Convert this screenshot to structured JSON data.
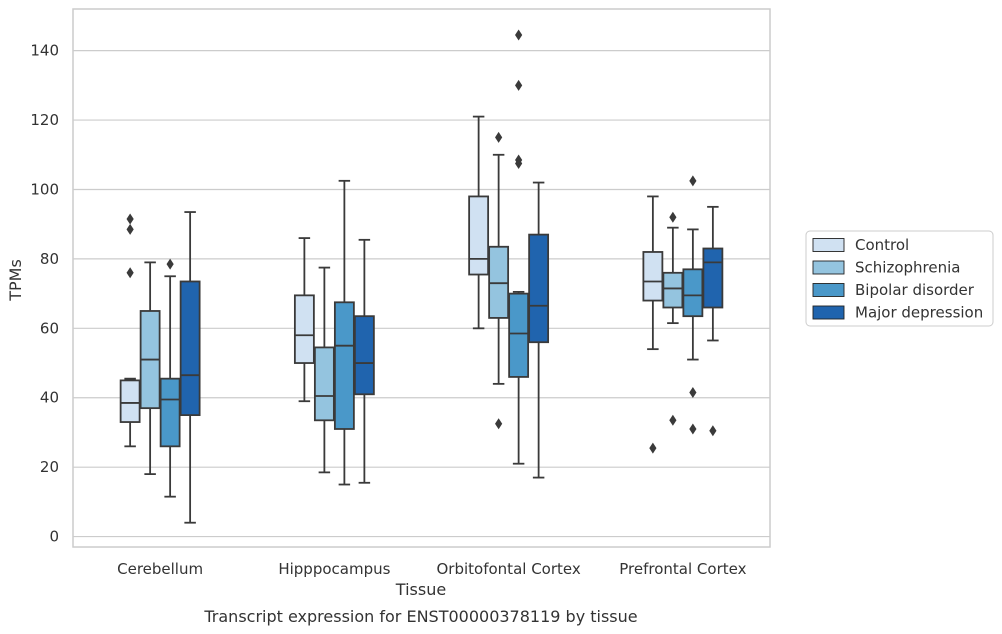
{
  "chart_data": {
    "type": "boxplot",
    "xlabel": "Tissue",
    "ylabel": "TPMs",
    "caption": "Transcript expression for ENST00000378119 by tissue",
    "ylim": [
      -3,
      152
    ],
    "yticks": [
      0,
      20,
      40,
      60,
      80,
      100,
      120,
      140
    ],
    "grid": "horizontal",
    "legend_position": "right",
    "categories": [
      "Cerebellum",
      "Hipppocampus",
      "Orbitofontal Cortex",
      "Prefrontal Cortex"
    ],
    "series": [
      {
        "name": "Control",
        "color": "#d0e1f2",
        "boxes": [
          {
            "whislo": 26,
            "q1": 33,
            "med": 38.5,
            "q3": 45,
            "whishi": 45.5,
            "fliers": [
              76,
              88.5,
              91.5
            ]
          },
          {
            "whislo": 39,
            "q1": 50,
            "med": 58,
            "q3": 69.5,
            "whishi": 86,
            "fliers": []
          },
          {
            "whislo": 60,
            "q1": 75.5,
            "med": 80,
            "q3": 98,
            "whishi": 121,
            "fliers": []
          },
          {
            "whislo": 54,
            "q1": 68,
            "med": 73.5,
            "q3": 82,
            "whishi": 98,
            "fliers": [
              25.5
            ]
          }
        ]
      },
      {
        "name": "Schizophrenia",
        "color": "#94c4df",
        "boxes": [
          {
            "whislo": 18,
            "q1": 37,
            "med": 51,
            "q3": 65,
            "whishi": 79,
            "fliers": []
          },
          {
            "whislo": 18.5,
            "q1": 33.5,
            "med": 40.5,
            "q3": 54.5,
            "whishi": 77.5,
            "fliers": []
          },
          {
            "whislo": 44,
            "q1": 63,
            "med": 73,
            "q3": 83.5,
            "whishi": 110,
            "fliers": [
              32.5,
              115
            ]
          },
          {
            "whislo": 61.5,
            "q1": 66,
            "med": 71.5,
            "q3": 76,
            "whishi": 89,
            "fliers": [
              33.5,
              92
            ]
          }
        ]
      },
      {
        "name": "Bipolar disorder",
        "color": "#4a98c9",
        "boxes": [
          {
            "whislo": 11.5,
            "q1": 26,
            "med": 39.5,
            "q3": 45.5,
            "whishi": 75,
            "fliers": [
              78.5
            ]
          },
          {
            "whislo": 15,
            "q1": 31,
            "med": 55,
            "q3": 67.5,
            "whishi": 102.5,
            "fliers": []
          },
          {
            "whislo": 21,
            "q1": 46,
            "med": 58.5,
            "q3": 70,
            "whishi": 70.5,
            "fliers": [
              107.5,
              108.5,
              130,
              144.5
            ]
          },
          {
            "whislo": 51,
            "q1": 63.5,
            "med": 69.5,
            "q3": 77,
            "whishi": 88.5,
            "fliers": [
              31,
              41.5,
              102.5
            ]
          }
        ]
      },
      {
        "name": "Major depression",
        "color": "#2064ae",
        "boxes": [
          {
            "whislo": 4,
            "q1": 35,
            "med": 46.5,
            "q3": 73.5,
            "whishi": 93.5,
            "fliers": []
          },
          {
            "whislo": 15.5,
            "q1": 41,
            "med": 50,
            "q3": 63.5,
            "whishi": 85.5,
            "fliers": []
          },
          {
            "whislo": 17,
            "q1": 56,
            "med": 66.5,
            "q3": 87,
            "whishi": 102,
            "fliers": []
          },
          {
            "whislo": 56.5,
            "q1": 66,
            "med": 79,
            "q3": 83,
            "whishi": 95,
            "fliers": [
              30.5
            ]
          }
        ]
      }
    ]
  }
}
